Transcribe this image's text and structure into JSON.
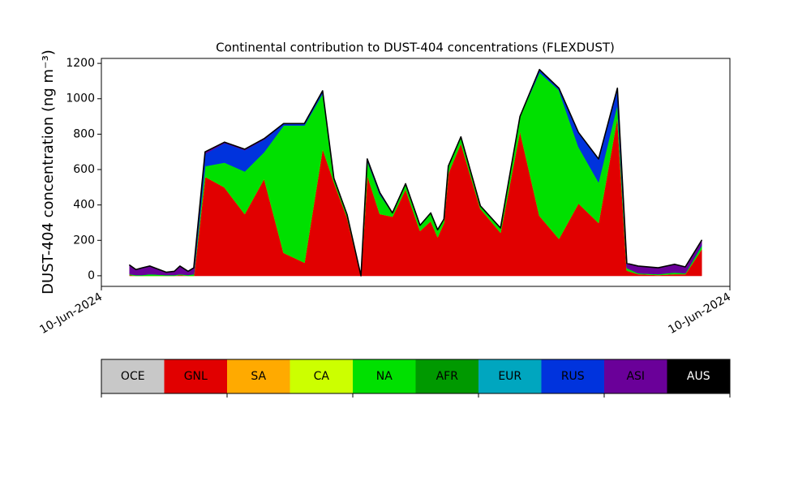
{
  "chart_data": {
    "type": "stackedarea",
    "title": "Continental contribution to DUST-404 concentrations (FLEXDUST)",
    "y_label": "DUST-404 concentration (ng m⁻³)",
    "xlim": [
      0,
      100
    ],
    "xticks": [
      {
        "value": 0,
        "label": "10-Jun-2024"
      },
      {
        "value": 100,
        "label": "10-Jun-2024"
      }
    ],
    "ylim": [
      -60,
      1228
    ],
    "yticks": [
      0,
      200,
      400,
      600,
      800,
      1000,
      1200
    ],
    "x": [
      4.5,
      5.5,
      6.5,
      7.7,
      10.3,
      11.6,
      12.5,
      13.8,
      14.7,
      16.5,
      19.6,
      22.8,
      25.9,
      29.0,
      32.3,
      35.2,
      37.0,
      39.1,
      41.3,
      42.3,
      44.3,
      46.3,
      48.4,
      50.7,
      52.4,
      53.5,
      54.5,
      55.2,
      57.2,
      60.3,
      63.5,
      66.6,
      69.7,
      72.8,
      75.9,
      79.1,
      82.1,
      83.6,
      85.4,
      88.6,
      91.2,
      92.9,
      95.5
    ],
    "series": [
      {
        "name": "OCE",
        "color": "#c8c8c8",
        "values": [
          0,
          0,
          0,
          0,
          0,
          0,
          0,
          0,
          0,
          0,
          0,
          0,
          0,
          0,
          0,
          0,
          0,
          0,
          0,
          0,
          0,
          0,
          0,
          0,
          0,
          0,
          0,
          0,
          0,
          0,
          0,
          0,
          0,
          0,
          0,
          0,
          0,
          0,
          0,
          0,
          0,
          0,
          0
        ]
      },
      {
        "name": "GNL",
        "color": "#e10000",
        "values": [
          5,
          0,
          0,
          0,
          0,
          0,
          5,
          0,
          0,
          560,
          500,
          350,
          550,
          130,
          75,
          720,
          530,
          330,
          0,
          570,
          350,
          335,
          490,
          255,
          310,
          220,
          300,
          580,
          750,
          380,
          245,
          820,
          340,
          210,
          410,
          300,
          900,
          30,
          10,
          5,
          10,
          10,
          150
        ]
      },
      {
        "name": "SA",
        "color": "#ffaa00",
        "values": [
          0,
          0,
          0,
          0,
          0,
          0,
          0,
          0,
          0,
          0,
          0,
          0,
          0,
          0,
          0,
          0,
          0,
          0,
          0,
          0,
          0,
          0,
          0,
          0,
          0,
          0,
          0,
          0,
          0,
          0,
          0,
          0,
          0,
          0,
          0,
          0,
          0,
          0,
          0,
          0,
          0,
          0,
          0
        ]
      },
      {
        "name": "CA",
        "color": "#ccff00",
        "values": [
          0,
          0,
          0,
          0,
          0,
          0,
          0,
          0,
          0,
          0,
          0,
          0,
          0,
          0,
          0,
          0,
          0,
          0,
          0,
          0,
          0,
          0,
          0,
          0,
          0,
          0,
          0,
          0,
          0,
          0,
          0,
          0,
          0,
          0,
          0,
          0,
          0,
          0,
          0,
          0,
          0,
          0,
          0
        ]
      },
      {
        "name": "NA",
        "color": "#00e000",
        "values": [
          5,
          5,
          5,
          10,
          5,
          5,
          5,
          5,
          10,
          60,
          140,
          240,
          150,
          720,
          775,
          310,
          20,
          15,
          0,
          80,
          110,
          20,
          30,
          30,
          45,
          40,
          20,
          40,
          35,
          15,
          25,
          80,
          810,
          840,
          320,
          230,
          70,
          15,
          5,
          5,
          10,
          5,
          20
        ]
      },
      {
        "name": "AFR",
        "color": "#009900",
        "values": [
          0,
          0,
          0,
          0,
          0,
          0,
          0,
          0,
          0,
          0,
          0,
          0,
          0,
          0,
          0,
          0,
          0,
          0,
          0,
          0,
          0,
          0,
          0,
          0,
          0,
          0,
          0,
          0,
          0,
          0,
          0,
          0,
          0,
          0,
          0,
          0,
          0,
          0,
          0,
          0,
          0,
          0,
          0
        ]
      },
      {
        "name": "EUR",
        "color": "#00a6bf",
        "values": [
          0,
          0,
          0,
          0,
          0,
          0,
          0,
          0,
          0,
          0,
          0,
          0,
          0,
          0,
          0,
          0,
          0,
          0,
          0,
          0,
          0,
          0,
          0,
          0,
          0,
          0,
          0,
          0,
          0,
          0,
          0,
          0,
          0,
          0,
          0,
          0,
          0,
          0,
          0,
          0,
          0,
          0,
          0
        ]
      },
      {
        "name": "RUS",
        "color": "#0033dd",
        "values": [
          0,
          0,
          0,
          0,
          0,
          0,
          0,
          0,
          0,
          70,
          110,
          120,
          70,
          10,
          10,
          15,
          0,
          0,
          0,
          10,
          10,
          0,
          0,
          0,
          0,
          0,
          0,
          0,
          0,
          0,
          0,
          0,
          15,
          10,
          80,
          130,
          90,
          0,
          0,
          0,
          0,
          0,
          5
        ]
      },
      {
        "name": "ASI",
        "color": "#6a0099",
        "values": [
          50,
          30,
          40,
          45,
          15,
          20,
          45,
          20,
          35,
          10,
          5,
          5,
          5,
          0,
          0,
          0,
          0,
          0,
          0,
          0,
          0,
          0,
          0,
          0,
          0,
          0,
          0,
          0,
          0,
          0,
          0,
          0,
          0,
          0,
          0,
          0,
          0,
          25,
          40,
          35,
          45,
          35,
          25
        ]
      },
      {
        "name": "AUS",
        "color": "#000000",
        "values": [
          0,
          0,
          0,
          0,
          0,
          0,
          0,
          0,
          0,
          0,
          0,
          0,
          0,
          0,
          0,
          0,
          0,
          0,
          0,
          0,
          0,
          0,
          0,
          0,
          0,
          0,
          0,
          0,
          0,
          0,
          0,
          0,
          0,
          0,
          0,
          0,
          0,
          0,
          0,
          0,
          0,
          0,
          0
        ]
      }
    ]
  }
}
